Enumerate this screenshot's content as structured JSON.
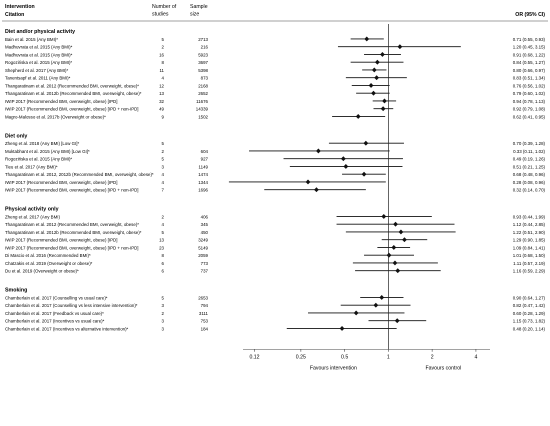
{
  "chart_data": {
    "type": "forest-plot",
    "scale": "log",
    "header": {
      "intervention": "Intervention",
      "citation": "Citation",
      "n_studies": "Number of studies",
      "sample_size": "Sample size",
      "or": "OR (95% CI)"
    },
    "x_ticks": [
      {
        "value": 0.12,
        "label": "0.12"
      },
      {
        "value": 0.25,
        "label": "0.25"
      },
      {
        "value": 0.5,
        "label": "0.5"
      },
      {
        "value": 1,
        "label": "1"
      },
      {
        "value": 2,
        "label": "2"
      },
      {
        "value": 4,
        "label": "4"
      }
    ],
    "xlim": [
      0.1,
      5.0
    ],
    "reference_line": 1,
    "favours_left": "Favours intervention",
    "favours_right": "Favours control",
    "groups": [
      {
        "title": "Diet and/or physical activity",
        "rows": [
          {
            "citation": "Bain et al. 2015 (Any BMI)*",
            "n": "5",
            "size": "2713",
            "or": 0.71,
            "lo": 0.55,
            "hi": 0.93,
            "text": "0.71 (0.55, 0.93)"
          },
          {
            "citation": "Madhuvrata et al. 2015 (Any BMI)*",
            "n": "2",
            "size": "216",
            "or": 1.2,
            "lo": 0.45,
            "hi": 3.15,
            "text": "1.20 (0.45, 3.15)"
          },
          {
            "citation": "Madhuvrata et al. 2015 (Any BMI)*",
            "n": "16",
            "size": "5923",
            "or": 0.91,
            "lo": 0.68,
            "hi": 1.22,
            "text": "0.91 (0.68, 1.22)"
          },
          {
            "citation": "Rogozińska et al. 2015 (Any BMI)*",
            "n": "8",
            "size": "3697",
            "or": 0.84,
            "lo": 0.55,
            "hi": 1.27,
            "text": "0.84 (0.55, 1.27)"
          },
          {
            "citation": "Shepherd et al. 2017 (Any BMI)*",
            "n": "11",
            "size": "5398",
            "or": 0.8,
            "lo": 0.66,
            "hi": 0.97,
            "text": "0.80 (0.66, 0.97)"
          },
          {
            "citation": "Tanentsapf et al. 2011 (Any BMI)*",
            "n": "4",
            "size": "873",
            "or": 0.83,
            "lo": 0.51,
            "hi": 1.34,
            "text": "0.83 (0.51, 1.34)"
          },
          {
            "citation": "Thangaratinam et al. 2012 (Recommended BMI, overweight, obese)*",
            "n": "12",
            "size": "2168",
            "or": 0.76,
            "lo": 0.56,
            "hi": 1.02,
            "text": "0.76 (0.56, 1.02)"
          },
          {
            "citation": "Thangaratinam et al. 2012b (Recommended BMI, overweight, obese)*",
            "n": "13",
            "size": "2652",
            "or": 0.79,
            "lo": 0.6,
            "hi": 1.02,
            "text": "0.79 (0.60, 1.02)"
          },
          {
            "citation": "IWIP 2017 (Recommended BMI, overweight, obese) [IPD]",
            "n": "32",
            "size": "11676",
            "or": 0.94,
            "lo": 0.78,
            "hi": 1.13,
            "text": "0.94 (0.78, 1.13)"
          },
          {
            "citation": "IWIP 2017 (Recommended BMI, overweight, obese) [IPD + non-IPD]",
            "n": "49",
            "size": "14339",
            "or": 0.92,
            "lo": 0.79,
            "hi": 1.08,
            "text": "0.92 (0.79, 1.08)"
          },
          {
            "citation": "Magro-Malosso et al. 2017b (Overweight or obese)*",
            "n": "9",
            "size": "1502",
            "or": 0.62,
            "lo": 0.41,
            "hi": 0.95,
            "text": "0.62 (0.41, 0.95)"
          }
        ]
      },
      {
        "title": "Diet only",
        "rows": [
          {
            "citation": "Zheng et al. 2018 (Any BMI) [Low GI]*",
            "n": "5",
            "size": "",
            "or": 0.7,
            "lo": 0.39,
            "hi": 1.28,
            "text": "0.70 (0.39, 1.28)"
          },
          {
            "citation": "Muktabhant et al. 2015 (Any BMI) [Low GI]*",
            "n": "2",
            "size": "604",
            "or": 0.33,
            "lo": 0.11,
            "hi": 1.02,
            "text": "0.33 (0.11, 1.02)"
          },
          {
            "citation": "Rogozińska et al. 2015 (Any BMI)*",
            "n": "5",
            "size": "927",
            "or": 0.49,
            "lo": 0.19,
            "hi": 1.26,
            "text": "0.49 (0.19, 1.26)"
          },
          {
            "citation": "Tieu et al. 2017 (Any BMI)*",
            "n": "3",
            "size": "1149",
            "or": 0.51,
            "lo": 0.21,
            "hi": 1.25,
            "text": "0.51 (0.21, 1.25)"
          },
          {
            "citation": "Thangaratinam et al. 2012, 2012b (Recommended BMI, overweight, obese)*",
            "n": "4",
            "size": "1474",
            "or": 0.68,
            "lo": 0.48,
            "hi": 0.96,
            "text": "0.68 (0.48, 0.96)"
          },
          {
            "citation": "IWIP 2017 (Recommended BMI, overweight, obese) [IPD]",
            "n": "4",
            "size": "1344",
            "or": 0.28,
            "lo": 0.08,
            "hi": 0.96,
            "text": "0.28 (0.08, 0.96)"
          },
          {
            "citation": "IWIP 2017 (Recommended BMI, overweight, obese) [IPD + non-IPD]",
            "n": "7",
            "size": "1696",
            "or": 0.32,
            "lo": 0.14,
            "hi": 0.7,
            "text": "0.32 (0.14, 0.70)"
          }
        ]
      },
      {
        "title": "Physical activity only",
        "rows": [
          {
            "citation": "Zheng et al. 2017 (Any BMI)",
            "n": "2",
            "size": "406",
            "or": 0.93,
            "lo": 0.44,
            "hi": 1.99,
            "text": "0.93 (0.44, 1.99)"
          },
          {
            "citation": "Thangaratinam et al. 2012 (Recommended BMI, overweight, obese)*",
            "n": "4",
            "size": "345",
            "or": 1.12,
            "lo": 0.44,
            "hi": 2.85,
            "text": "1.12 (0.44, 2.85)"
          },
          {
            "citation": "Thangaratinam et al. 2012b (Recommended BMI, overweight, obese)*",
            "n": "5",
            "size": "450",
            "or": 1.22,
            "lo": 0.51,
            "hi": 2.9,
            "text": "1.22 (0.51, 2.90)"
          },
          {
            "citation": "IWIP 2017 (Recommended BMI, overweight, obese) [IPD]",
            "n": "13",
            "size": "3249",
            "or": 1.29,
            "lo": 0.9,
            "hi": 1.85,
            "text": "1.29 (0.90, 1.85)"
          },
          {
            "citation": "IWIP 2017 (Recommended BMI, overweight, obese) [IPD + non-IPD]",
            "n": "23",
            "size": "5149",
            "or": 1.09,
            "lo": 0.84,
            "hi": 1.41,
            "text": "1.09 (0.84, 1.41)"
          },
          {
            "citation": "Di Mascio et al. 2016 (Recommended BMI)*",
            "n": "8",
            "size": "2059",
            "or": 1.01,
            "lo": 0.68,
            "hi": 1.5,
            "text": "1.01 (0.68, 1.50)"
          },
          {
            "citation": "Chatzakis et al. 2019 (Overweight or obese)*",
            "n": "6",
            "size": "773",
            "or": 1.11,
            "lo": 0.57,
            "hi": 2.19,
            "text": "1.11 (0.57, 2.19)"
          },
          {
            "citation": "Du et al. 2019 (Overweight or obese)*",
            "n": "6",
            "size": "737",
            "or": 1.16,
            "lo": 0.59,
            "hi": 2.29,
            "text": "1.16 (0.59, 2.29)"
          }
        ]
      },
      {
        "title": "Smoking",
        "rows": [
          {
            "citation": "Chamberlain et al. 2017 (Counselling vs usual care)*",
            "n": "5",
            "size": "2653",
            "or": 0.9,
            "lo": 0.64,
            "hi": 1.27,
            "text": "0.90 (0.64, 1.27)"
          },
          {
            "citation": "Chamberlain et al. 2017 (Counselling vs less intensive intervention)*",
            "n": "3",
            "size": "794",
            "or": 0.82,
            "lo": 0.47,
            "hi": 1.42,
            "text": "0.82 (0.47, 1.42)"
          },
          {
            "citation": "Chamberlain et al. 2017 (Feedback vs usual care)*",
            "n": "2",
            "size": "3111",
            "or": 0.6,
            "lo": 0.28,
            "hi": 1.29,
            "text": "0.60 (0.28, 1.29)"
          },
          {
            "citation": "Chamberlain et al. 2017 (Incentives vs usual care)*",
            "n": "3",
            "size": "753",
            "or": 1.15,
            "lo": 0.73,
            "hi": 1.82,
            "text": "1.15 (0.73, 1.82)"
          },
          {
            "citation": "Chamberlain et al. 2017 (Incentives vs alternative intervention)*",
            "n": "3",
            "size": "184",
            "or": 0.48,
            "lo": 0.2,
            "hi": 1.14,
            "text": "0.48 (0.20, 1.14)"
          }
        ]
      }
    ]
  }
}
